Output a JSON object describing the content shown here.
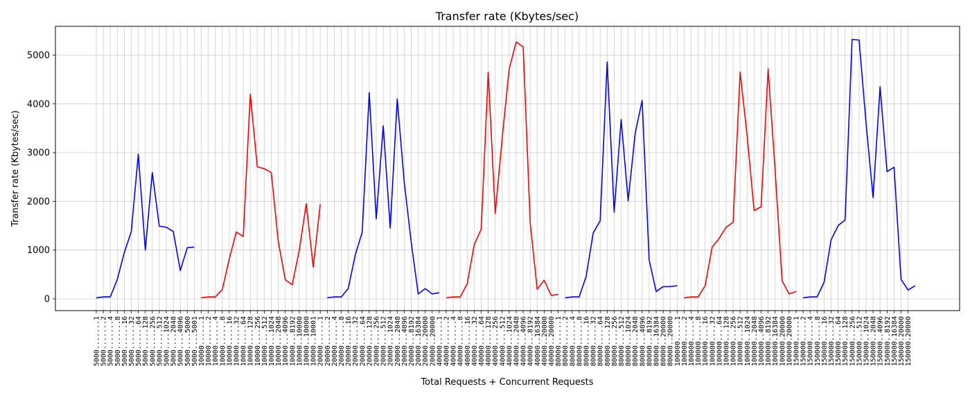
{
  "chart_data": {
    "type": "line",
    "title": "Transfer rate (Kbytes/sec)",
    "xlabel": "Total Requests + Concurrent Requests",
    "ylabel": "Transfer rate (Kbytes/sec)",
    "ylim": [
      -250,
      5600
    ],
    "yticks": [
      0,
      1000,
      2000,
      3000,
      4000,
      5000
    ],
    "grid": true,
    "colors": {
      "blue": "#0000ff",
      "red": "#ff0000",
      "grid": "#cccccc"
    },
    "x_tick_labels": [
      "5000.......1",
      "5000.......2",
      "5000.......4",
      "5000.......8",
      "5000......16",
      "5000......32",
      "5000......64",
      "5000.....128",
      "5000.....256",
      "5000.....512",
      "5000....1024",
      "5000....2048",
      "5000....4096",
      "5000....5000",
      "5000....5001",
      "10000......1",
      "10000......2",
      "10000......4",
      "10000......8",
      "10000.....16",
      "10000.....32",
      "10000.....64",
      "10000....128",
      "10000....256",
      "10000....512",
      "10000...1024",
      "10000...2048",
      "10000...4096",
      "10000...8192",
      "10000..10000",
      "10000..10000",
      "10000..10001",
      "20000......1",
      "20000......2",
      "20000......4",
      "20000......8",
      "20000.....16",
      "20000.....32",
      "20000.....64",
      "20000....128",
      "20000....256",
      "20000....512",
      "20000...1024",
      "20000...2048",
      "20000...4096",
      "20000...8192",
      "20000..16384",
      "20000..20000",
      "20000..20000",
      "40000......1",
      "40000......2",
      "40000......4",
      "40000......8",
      "40000.....16",
      "40000.....32",
      "40000.....64",
      "40000....128",
      "40000....256",
      "40000....512",
      "40000...1024",
      "40000...2048",
      "40000...4096",
      "40000...8192",
      "40000..16384",
      "40000..20000",
      "40000..20000",
      "80000......1",
      "80000......2",
      "80000......4",
      "80000......8",
      "80000.....16",
      "80000.....32",
      "80000.....64",
      "80000....128",
      "80000....256",
      "80000....512",
      "80000...1024",
      "80000...2048",
      "80000...4096",
      "80000...8192",
      "80000..16384",
      "80000..20000",
      "80000..20000",
      "100000.....1",
      "100000.....2",
      "100000.....4",
      "100000.....8",
      "100000....16",
      "100000....32",
      "100000....64",
      "100000...128",
      "100000...256",
      "100000...512",
      "100000..1024",
      "100000..2048",
      "100000..4096",
      "100000..8192",
      "100000.16384",
      "100000.20000",
      "100000.20000",
      "150000.....1",
      "150000.....2",
      "150000.....4",
      "150000.....8",
      "150000....16",
      "150000....32",
      "150000....64",
      "150000...128",
      "150000...256",
      "150000...512",
      "150000..1024",
      "150000..2048",
      "150000..4096",
      "150000..8192",
      "150000.16384",
      "150000.20000",
      "150000.20000"
    ],
    "series": [
      {
        "color": "blue",
        "start": 0,
        "values": [
          20,
          40,
          40,
          400,
          950,
          1380,
          2970,
          1000,
          2590,
          1490,
          1470,
          1380,
          580,
          1050,
          1060
        ]
      },
      {
        "color": "red",
        "start": 15,
        "values": [
          20,
          40,
          40,
          190,
          820,
          1370,
          1280,
          4200,
          2710,
          2670,
          2590,
          1180,
          390,
          290,
          1000,
          1950,
          650,
          1940
        ]
      },
      {
        "color": "blue",
        "start": 33,
        "values": [
          20,
          40,
          40,
          210,
          900,
          1370,
          4230,
          1640,
          3550,
          1450,
          4100,
          2400,
          1160,
          100,
          210,
          100,
          125
        ]
      },
      {
        "color": "red",
        "start": 50,
        "values": [
          20,
          40,
          40,
          310,
          1110,
          1430,
          4650,
          1750,
          3300,
          4720,
          5270,
          5170,
          1560,
          200,
          380,
          70,
          90
        ]
      },
      {
        "color": "blue",
        "start": 67,
        "values": [
          20,
          40,
          40,
          460,
          1350,
          1600,
          4860,
          1780,
          3680,
          2010,
          3390,
          4070,
          800,
          150,
          250,
          250,
          270
        ]
      },
      {
        "color": "red",
        "start": 84,
        "values": [
          20,
          40,
          40,
          270,
          1060,
          1240,
          1470,
          1570,
          4650,
          3350,
          1810,
          1890,
          4720,
          2640,
          370,
          100,
          150
        ]
      },
      {
        "color": "blue",
        "start": 101,
        "values": [
          20,
          40,
          40,
          340,
          1210,
          1500,
          1620,
          5320,
          5310,
          3600,
          2080,
          4350,
          2610,
          2700,
          400,
          180,
          270
        ]
      }
    ]
  }
}
